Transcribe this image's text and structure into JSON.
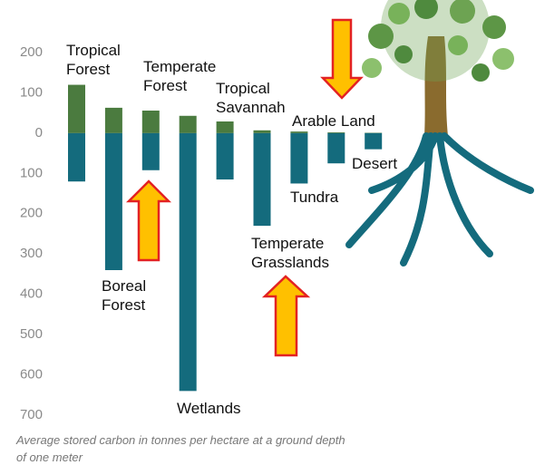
{
  "chart_data": {
    "type": "diverging-bar",
    "categories": [
      "Tropical Forest",
      "Boreal Forest",
      "Temperate Forest",
      "Wetlands",
      "Tropical Savannah",
      "Temperate Grasslands",
      "Tundra",
      "Arable Land",
      "Desert"
    ],
    "series": [
      {
        "color": "#4b7b3f",
        "values": [
          120,
          63,
          56,
          43,
          29,
          7,
          4,
          2,
          1
        ]
      },
      {
        "color": "#146b7d",
        "values": [
          -120,
          -340,
          -92,
          -640,
          -115,
          -230,
          -125,
          -75,
          -40
        ]
      }
    ],
    "ylim": [
      -700,
      200
    ],
    "yticks": [
      200,
      100,
      0,
      {
        "value": -100,
        "label": "100"
      },
      {
        "value": -200,
        "label": "200"
      },
      {
        "value": -300,
        "label": "300"
      },
      {
        "value": -400,
        "label": "400"
      },
      {
        "value": -500,
        "label": "500"
      },
      {
        "value": -600,
        "label": "600"
      },
      {
        "value": -700,
        "label": "700"
      }
    ],
    "caption": "Average stored carbon in tonnes per hectare at a ground depth of one meter"
  }
}
